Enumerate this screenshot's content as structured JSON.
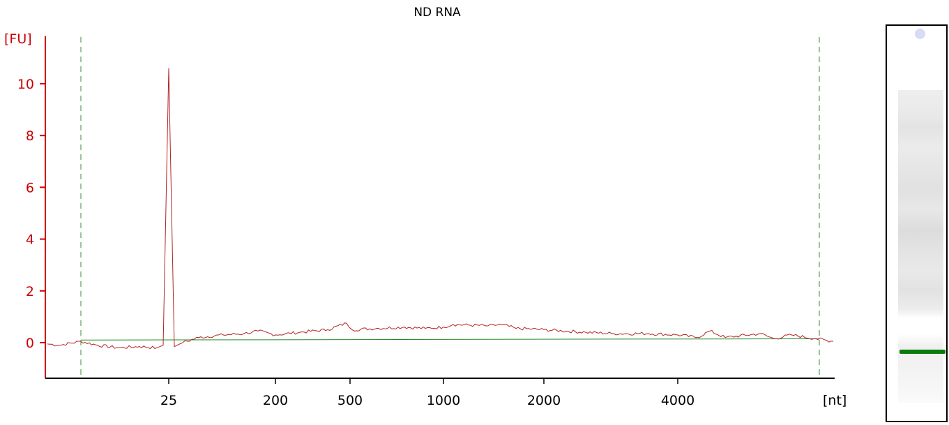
{
  "chart_data": {
    "type": "line",
    "title": "ND RNA",
    "ylabel": "[FU]",
    "xlabel": "[nt]",
    "ylim": [
      -1.3,
      11.8
    ],
    "grid": false,
    "yticks": [
      0,
      2,
      4,
      6,
      8,
      10
    ],
    "xticks": [
      "25",
      "200",
      "500",
      "1000",
      "2000",
      "4000"
    ],
    "x_axis_scale": "size in nucleotides (non-linear, per tick labels)",
    "series": [
      {
        "values_note": "fluorescence trace, sampled along the size axis",
        "points": [
          [
            "<25",
            -0.05
          ],
          [
            "<25",
            -0.1
          ],
          [
            "<25",
            0.05
          ],
          [
            "<25",
            -0.1
          ],
          [
            "<25",
            -0.2
          ],
          [
            "<25",
            -0.15
          ],
          [
            "<25",
            -0.2
          ],
          [
            "25",
            -0.1
          ],
          [
            "25",
            10.6
          ],
          [
            "25",
            -0.15
          ],
          [
            "25",
            0.0
          ],
          [
            "25-200",
            0.2
          ],
          [
            "25-200",
            0.3
          ],
          [
            "25-200",
            0.35
          ],
          [
            "25-200",
            0.45
          ],
          [
            "200",
            0.3
          ],
          [
            "200-500",
            0.4
          ],
          [
            "200-500",
            0.5
          ],
          [
            "500",
            0.75
          ],
          [
            "500",
            0.5
          ],
          [
            "500-1000",
            0.55
          ],
          [
            "500-1000",
            0.6
          ],
          [
            "500-1000",
            0.55
          ],
          [
            "1000",
            0.6
          ],
          [
            "1000",
            0.7
          ],
          [
            "1000-2000",
            0.65
          ],
          [
            "1000-2000",
            0.7
          ],
          [
            "1000-2000",
            0.55
          ],
          [
            "2000",
            0.5
          ],
          [
            "2000-4000",
            0.4
          ],
          [
            "2000-4000",
            0.35
          ],
          [
            "2000-4000",
            0.35
          ],
          [
            "4000",
            0.3
          ],
          [
            "4000",
            0.2
          ],
          [
            ">4000",
            0.45
          ],
          [
            ">4000",
            0.2
          ],
          [
            ">4000",
            0.35
          ],
          [
            ">4000",
            0.15
          ],
          [
            ">4000",
            0.3
          ],
          [
            ">4000",
            0.15
          ],
          [
            ">4000",
            0.05
          ]
        ]
      }
    ],
    "baseline": {
      "start": 0.1,
      "end": 0.15
    },
    "marker_lines": [
      "lower-marker",
      "upper-marker"
    ],
    "colors": {
      "axis": "#cc0000",
      "trace": "#b22222",
      "baseline": "#228b22",
      "marker_lines": "#3a8a3a",
      "gel_band": "#0a7a0a",
      "gel_well": "#c8ccf0"
    }
  }
}
